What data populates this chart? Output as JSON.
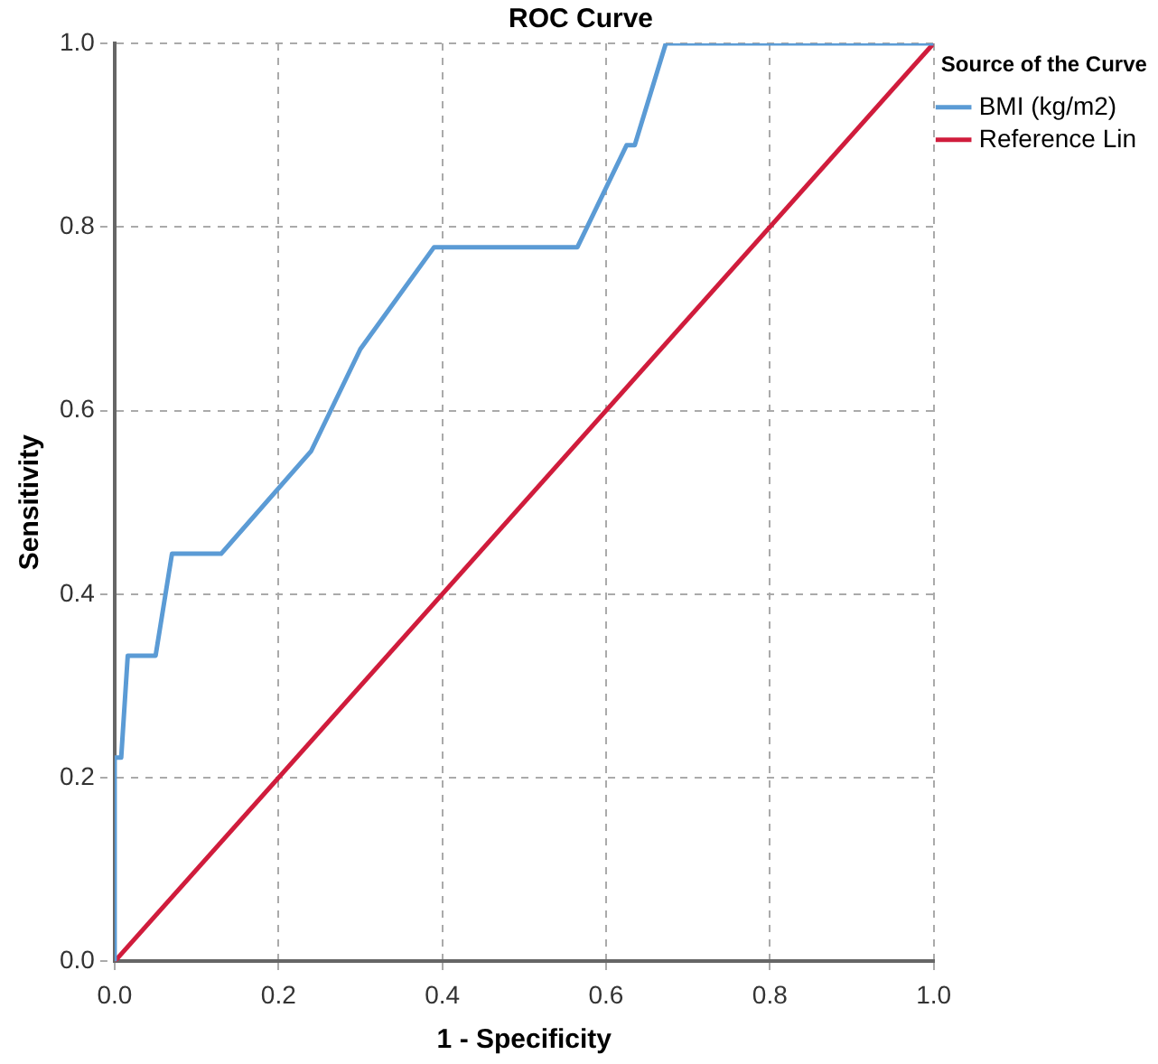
{
  "chart_data": {
    "type": "line",
    "title": "ROC Curve",
    "xlabel": "1 - Specificity",
    "ylabel": "Sensitivity",
    "legend_title": "Source of the Curve",
    "xlim": [
      0,
      1
    ],
    "ylim": [
      0,
      1
    ],
    "xticks": [
      {
        "value": 0,
        "label": "0.0"
      },
      0.2,
      0.4,
      0.6,
      0.8,
      {
        "value": 1,
        "label": "1.0"
      }
    ],
    "yticks": [
      {
        "value": 0,
        "label": "0.0"
      },
      0.2,
      0.4,
      0.6,
      0.8,
      {
        "value": 1,
        "label": "1.0"
      }
    ],
    "grid": true,
    "legend": "right",
    "marker": "none",
    "line_style": "solid",
    "series": [
      {
        "name": "BMI (kg/m2)",
        "color": "#5b9bd5",
        "x": [
          0,
          0,
          0.008,
          0.016,
          0.05,
          0.07,
          0.13,
          0.24,
          0.3,
          0.39,
          0.565,
          0.625,
          0.635,
          0.673,
          1
        ],
        "values": [
          0,
          0.222,
          0.222,
          0.333,
          0.333,
          0.444,
          0.444,
          0.556,
          0.667,
          0.778,
          0.778,
          0.889,
          0.889,
          1,
          1
        ]
      },
      {
        "name": "Reference Lin",
        "color": "#d01c3c",
        "x": [
          0,
          1
        ],
        "values": [
          0,
          1
        ]
      }
    ]
  }
}
